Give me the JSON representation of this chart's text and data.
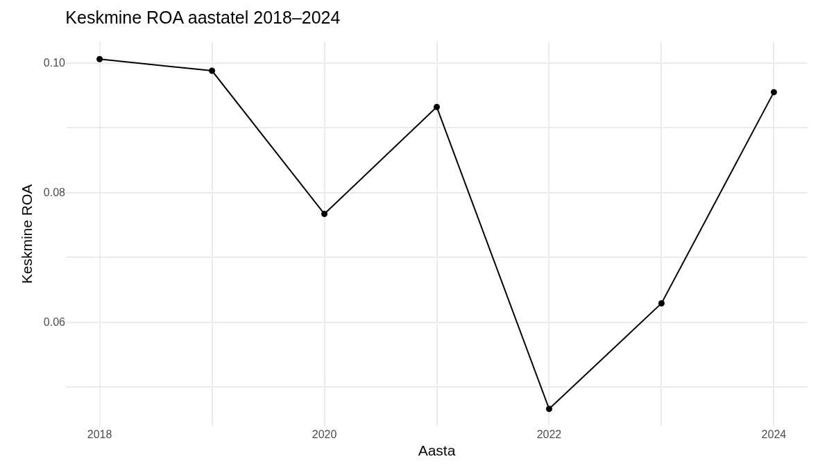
{
  "chart_data": {
    "type": "line",
    "title": "Keskmine ROA aastatel 2018–2024",
    "xlabel": "Aasta",
    "ylabel": "Keskmine ROA",
    "x": [
      2018,
      2019,
      2020,
      2021,
      2022,
      2023,
      2024
    ],
    "series": [
      {
        "color": "#000000",
        "values": [
          0.1006,
          0.0988,
          0.0767,
          0.0932,
          0.0466,
          0.0629,
          0.0955
        ]
      }
    ],
    "xlim": [
      2017.7,
      2024.3
    ],
    "xticks": [
      2018,
      {
        "value": 2019,
        "label": null
      },
      2020,
      {
        "value": 2021,
        "label": null
      },
      2022,
      {
        "value": 2023,
        "label": null
      },
      2024
    ],
    "ylim": [
      0.0439,
      0.1033
    ],
    "yticks": [
      {
        "value": 0.05,
        "label": null
      },
      {
        "value": 0.06,
        "label": "0.06"
      },
      {
        "value": 0.07,
        "label": null
      },
      {
        "value": 0.08,
        "label": "0.08"
      },
      {
        "value": 0.09,
        "label": null
      },
      {
        "value": 0.1,
        "label": "0.10"
      }
    ],
    "grid": true,
    "marker": "circle",
    "line_style": "solid"
  }
}
